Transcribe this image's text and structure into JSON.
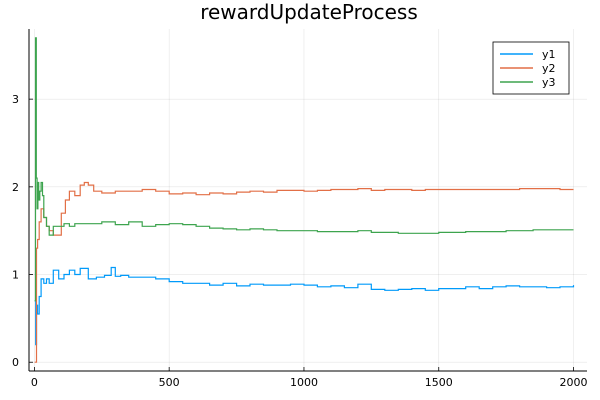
{
  "chart_data": {
    "type": "line",
    "title": "rewardUpdateProcess",
    "xlabel": "",
    "ylabel": "",
    "xlim": [
      -20,
      2050
    ],
    "ylim": [
      -0.1,
      3.8
    ],
    "xticks": [
      0,
      500,
      1000,
      1500,
      2000
    ],
    "yticks": [
      0,
      1,
      2,
      3
    ],
    "grid": true,
    "legend_position": "top-right",
    "series": [
      {
        "name": "y1",
        "color": "#009AFA",
        "x": [
          1,
          5,
          8,
          12,
          18,
          25,
          35,
          45,
          55,
          70,
          90,
          110,
          130,
          150,
          170,
          200,
          230,
          260,
          285,
          300,
          320,
          350,
          400,
          450,
          500,
          550,
          600,
          650,
          700,
          750,
          800,
          850,
          900,
          950,
          1000,
          1050,
          1100,
          1150,
          1200,
          1250,
          1300,
          1350,
          1400,
          1450,
          1500,
          1550,
          1600,
          1650,
          1700,
          1750,
          1800,
          1850,
          1900,
          1950,
          2000
        ],
        "values": [
          0.7,
          0.2,
          0.65,
          0.55,
          0.75,
          0.95,
          0.9,
          0.95,
          0.9,
          1.05,
          0.95,
          1.0,
          1.05,
          1.0,
          1.07,
          0.95,
          0.97,
          0.99,
          1.08,
          0.98,
          0.99,
          0.97,
          0.97,
          0.95,
          0.92,
          0.9,
          0.9,
          0.88,
          0.9,
          0.87,
          0.89,
          0.88,
          0.88,
          0.89,
          0.88,
          0.86,
          0.87,
          0.85,
          0.89,
          0.83,
          0.82,
          0.83,
          0.84,
          0.82,
          0.84,
          0.84,
          0.86,
          0.84,
          0.86,
          0.87,
          0.86,
          0.86,
          0.85,
          0.86,
          0.88
        ]
      },
      {
        "name": "y2",
        "color": "#E26F46",
        "x": [
          1,
          5,
          8,
          12,
          18,
          25,
          35,
          45,
          55,
          70,
          85,
          100,
          115,
          130,
          150,
          170,
          185,
          200,
          220,
          250,
          300,
          350,
          400,
          450,
          500,
          550,
          600,
          650,
          700,
          750,
          800,
          850,
          900,
          950,
          1000,
          1050,
          1100,
          1150,
          1200,
          1250,
          1300,
          1350,
          1400,
          1450,
          1500,
          1550,
          1600,
          1650,
          1700,
          1750,
          1800,
          1850,
          1900,
          1950,
          2000
        ],
        "values": [
          0.0,
          0.0,
          1.3,
          1.4,
          1.6,
          1.75,
          1.65,
          1.55,
          1.5,
          1.45,
          1.45,
          1.7,
          1.85,
          1.95,
          1.9,
          2.02,
          2.05,
          2.02,
          1.95,
          1.93,
          1.95,
          1.95,
          1.97,
          1.95,
          1.92,
          1.93,
          1.91,
          1.93,
          1.92,
          1.94,
          1.95,
          1.94,
          1.96,
          1.96,
          1.95,
          1.96,
          1.97,
          1.97,
          1.98,
          1.96,
          1.97,
          1.97,
          1.96,
          1.97,
          1.97,
          1.97,
          1.97,
          1.97,
          1.97,
          1.97,
          1.98,
          1.98,
          1.98,
          1.97,
          1.97
        ]
      },
      {
        "name": "y3",
        "color": "#3DA44E",
        "x": [
          1,
          4,
          7,
          10,
          13,
          16,
          20,
          25,
          30,
          35,
          45,
          55,
          70,
          90,
          110,
          130,
          150,
          200,
          250,
          300,
          350,
          400,
          450,
          500,
          550,
          600,
          650,
          700,
          750,
          800,
          850,
          900,
          950,
          1000,
          1050,
          1100,
          1150,
          1200,
          1250,
          1300,
          1350,
          1400,
          1450,
          1500,
          1550,
          1600,
          1650,
          1700,
          1750,
          1800,
          1850,
          1900,
          1950,
          2000
        ],
        "values": [
          0.7,
          3.7,
          2.1,
          1.75,
          2.05,
          1.85,
          1.95,
          2.05,
          1.9,
          1.65,
          1.55,
          1.45,
          1.55,
          1.55,
          1.58,
          1.55,
          1.58,
          1.58,
          1.6,
          1.57,
          1.6,
          1.55,
          1.57,
          1.58,
          1.57,
          1.55,
          1.53,
          1.52,
          1.51,
          1.52,
          1.51,
          1.5,
          1.5,
          1.5,
          1.49,
          1.49,
          1.49,
          1.5,
          1.48,
          1.48,
          1.47,
          1.47,
          1.47,
          1.48,
          1.48,
          1.49,
          1.49,
          1.49,
          1.5,
          1.5,
          1.51,
          1.51,
          1.51,
          1.51
        ]
      }
    ]
  }
}
